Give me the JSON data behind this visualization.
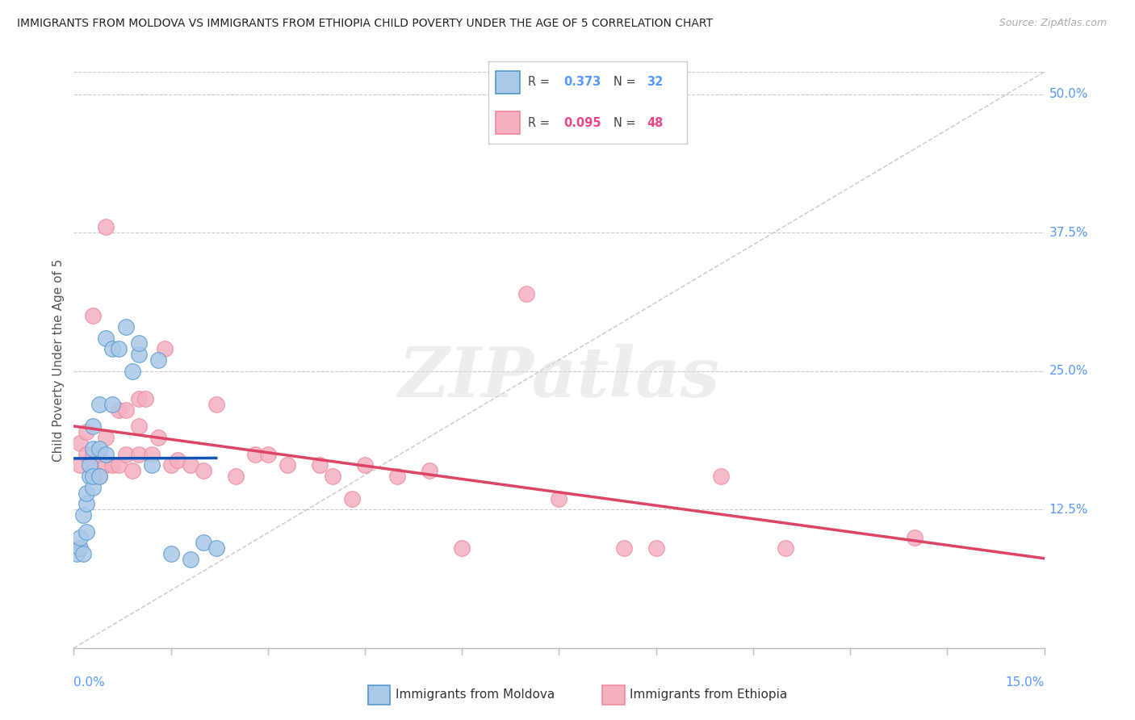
{
  "title": "IMMIGRANTS FROM MOLDOVA VS IMMIGRANTS FROM ETHIOPIA CHILD POVERTY UNDER THE AGE OF 5 CORRELATION CHART",
  "source": "Source: ZipAtlas.com",
  "ylabel": "Child Poverty Under the Age of 5",
  "xmin": 0.0,
  "xmax": 0.15,
  "ymin": 0.0,
  "ymax": 0.52,
  "ytick_vals": [
    0.0,
    0.125,
    0.25,
    0.375,
    0.5
  ],
  "ytick_labels": [
    "",
    "12.5%",
    "25.0%",
    "37.5%",
    "50.0%"
  ],
  "moldova_color": "#aac8e8",
  "ethiopia_color": "#f5b0c0",
  "moldova_edge": "#5599cc",
  "ethiopia_edge": "#ee8899",
  "reg_moldova_color": "#1155bb",
  "reg_ethiopia_color": "#dd4466",
  "diag_color": "#bbbbbb",
  "R_moldova": 0.373,
  "N_moldova": 32,
  "R_ethiopia": 0.095,
  "N_ethiopia": 48,
  "axis_label_color": "#5599ff",
  "moldova_x": [
    0.0005,
    0.001,
    0.001,
    0.0015,
    0.0015,
    0.002,
    0.002,
    0.002,
    0.0025,
    0.0025,
    0.003,
    0.003,
    0.003,
    0.003,
    0.004,
    0.004,
    0.004,
    0.005,
    0.005,
    0.006,
    0.006,
    0.007,
    0.008,
    0.009,
    0.01,
    0.01,
    0.012,
    0.013,
    0.015,
    0.018,
    0.02,
    0.022
  ],
  "moldova_y": [
    0.085,
    0.09,
    0.1,
    0.085,
    0.12,
    0.105,
    0.13,
    0.14,
    0.155,
    0.165,
    0.145,
    0.155,
    0.18,
    0.2,
    0.155,
    0.18,
    0.22,
    0.175,
    0.28,
    0.22,
    0.27,
    0.27,
    0.29,
    0.25,
    0.265,
    0.275,
    0.165,
    0.26,
    0.085,
    0.08,
    0.095,
    0.09
  ],
  "ethiopia_x": [
    0.001,
    0.001,
    0.002,
    0.002,
    0.003,
    0.003,
    0.003,
    0.004,
    0.004,
    0.005,
    0.005,
    0.005,
    0.006,
    0.007,
    0.007,
    0.008,
    0.008,
    0.009,
    0.01,
    0.01,
    0.01,
    0.011,
    0.012,
    0.013,
    0.014,
    0.015,
    0.016,
    0.018,
    0.02,
    0.022,
    0.025,
    0.028,
    0.03,
    0.033,
    0.038,
    0.04,
    0.043,
    0.045,
    0.05,
    0.055,
    0.06,
    0.07,
    0.075,
    0.085,
    0.09,
    0.1,
    0.11,
    0.13
  ],
  "ethiopia_y": [
    0.165,
    0.185,
    0.175,
    0.195,
    0.16,
    0.175,
    0.3,
    0.155,
    0.175,
    0.165,
    0.19,
    0.38,
    0.165,
    0.165,
    0.215,
    0.175,
    0.215,
    0.16,
    0.175,
    0.2,
    0.225,
    0.225,
    0.175,
    0.19,
    0.27,
    0.165,
    0.17,
    0.165,
    0.16,
    0.22,
    0.155,
    0.175,
    0.175,
    0.165,
    0.165,
    0.155,
    0.135,
    0.165,
    0.155,
    0.16,
    0.09,
    0.32,
    0.135,
    0.09,
    0.09,
    0.155,
    0.09,
    0.1
  ],
  "watermark": "ZIPatlas",
  "scatter_size": 200
}
